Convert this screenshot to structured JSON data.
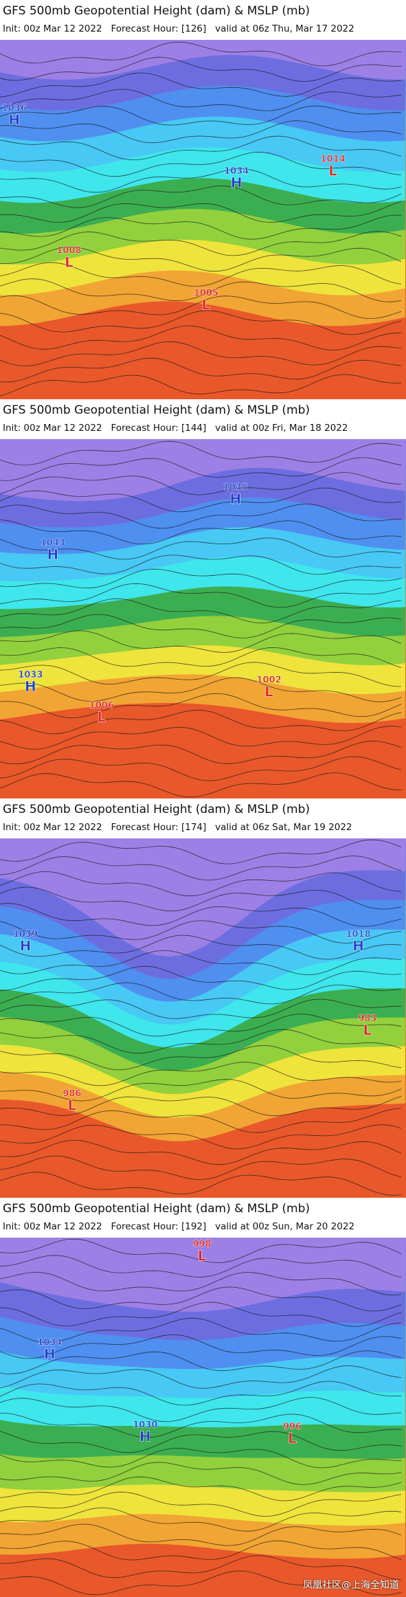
{
  "panels": [
    {
      "title": "GFS 500mb Geopotential Height (dam) & MSLP (mb)",
      "info": "Init: 00z Mar 12 2022   Forecast Hour: [126]   valid at 06z Thu, Mar 17 2022",
      "centers": [
        {
          "letter": "H",
          "value": 1036
        },
        {
          "letter": "L",
          "value": 1014
        },
        {
          "letter": "H",
          "value": 1034
        },
        {
          "letter": "L",
          "value": 1008
        },
        {
          "letter": "L",
          "value": 1005
        }
      ]
    },
    {
      "title": "GFS 500mb Geopotential Height (dam) & MSLP (mb)",
      "info": "Init: 00z Mar 12 2022   Forecast Hour: [144]   valid at 00z Fri, Mar 18 2022",
      "centers": [
        {
          "letter": "H",
          "value": 1035
        },
        {
          "letter": "H",
          "value": 1043
        },
        {
          "letter": "H",
          "value": 1033
        },
        {
          "letter": "L",
          "value": 1006
        },
        {
          "letter": "L",
          "value": 1002
        }
      ]
    },
    {
      "title": "GFS 500mb Geopotential Height (dam) & MSLP (mb)",
      "info": "Init: 00z Mar 12 2022   Forecast Hour: [174]   valid at 06z Sat, Mar 19 2022",
      "centers": [
        {
          "letter": "H",
          "value": 1039
        },
        {
          "letter": "H",
          "value": 1018
        },
        {
          "letter": "L",
          "value": 983
        },
        {
          "letter": "L",
          "value": 986
        }
      ]
    },
    {
      "title": "GFS 500mb Geopotential Height (dam) & MSLP (mb)",
      "info": "Init: 00z Mar 12 2022   Forecast Hour: [192]   valid at 00z Sun, Mar 20 2022",
      "centers": [
        {
          "letter": "L",
          "value": 998
        },
        {
          "letter": "H",
          "value": 1034
        },
        {
          "letter": "H",
          "value": 1030
        },
        {
          "letter": "L",
          "value": 996
        }
      ]
    }
  ],
  "watermark": "凤凰社区@上海全知道"
}
